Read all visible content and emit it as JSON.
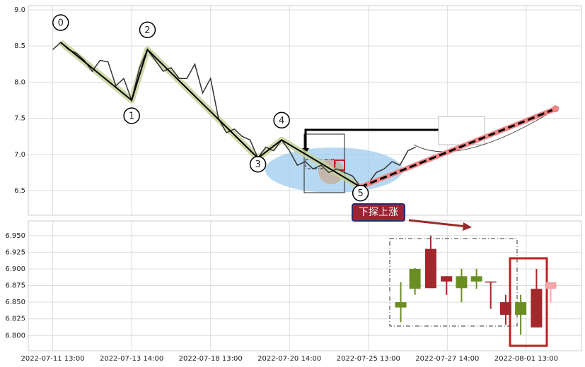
{
  "chart_data": [
    {
      "type": "line",
      "xlim": [
        -3.1,
        67.0
      ],
      "ylim": [
        6.158,
        9.058
      ],
      "yticks": [
        {
          "value": 9.0,
          "label": "9.0"
        },
        8.5,
        {
          "value": 8.0,
          "label": "8.0"
        },
        7.5,
        {
          "value": 7.0,
          "label": "7.0"
        },
        6.5
      ],
      "series": [
        {
          "color": "#333333",
          "x": [
            0,
            1,
            2,
            3,
            4,
            5,
            6,
            7,
            8,
            9,
            10,
            11,
            12,
            13,
            14,
            15,
            16,
            17,
            18,
            19,
            20,
            21,
            22,
            23,
            24,
            25,
            26,
            27,
            28,
            29,
            30,
            31,
            32,
            33,
            34,
            35,
            36,
            37,
            38,
            39,
            40,
            41,
            42,
            43,
            44,
            45,
            46
          ],
          "values": [
            8.45,
            8.55,
            8.45,
            8.4,
            8.3,
            8.15,
            8.3,
            8.28,
            7.95,
            8.05,
            7.75,
            8.2,
            8.45,
            8.3,
            8.15,
            8.2,
            8.05,
            8.05,
            8.25,
            7.85,
            8.05,
            7.5,
            7.3,
            7.35,
            7.25,
            7.2,
            6.95,
            7.1,
            7.05,
            7.2,
            7.05,
            6.85,
            6.9,
            6.8,
            6.85,
            6.75,
            6.8,
            6.75,
            6.7,
            6.55,
            6.6,
            6.75,
            6.8,
            6.9,
            6.85,
            7.05,
            7.1
          ]
        }
      ],
      "zigzag": {
        "color": "#000000",
        "glow": "#c5d29a",
        "x": [
          1,
          10,
          12,
          26,
          29,
          39
        ],
        "values": [
          8.55,
          7.75,
          8.45,
          6.95,
          7.2,
          6.55
        ],
        "labels": [
          "0",
          "1",
          "2",
          "3",
          "4",
          "5"
        ]
      },
      "forecast": {
        "color": "#f08585",
        "x": [
          39,
          63.7
        ],
        "values": [
          6.55,
          7.63
        ]
      },
      "annotation": "下探上涨",
      "grid": true
    },
    {
      "type": "candlestick",
      "xlim": [
        -3.1,
        67.0
      ],
      "ylim": [
        6.777,
        6.972
      ],
      "xticks": [
        {
          "value": 0,
          "label": "2022-07-11 13:00"
        },
        {
          "value": 10,
          "label": "2022-07-13 14:00"
        },
        {
          "value": 20,
          "label": "2022-07-18 13:00"
        },
        {
          "value": 30,
          "label": "2022-07-20 14:00"
        },
        {
          "value": 40,
          "label": "2022-07-25 13:00"
        },
        {
          "value": 50,
          "label": "2022-07-27 14:00"
        },
        {
          "value": 60,
          "label": "2022-08-01 13:00"
        }
      ],
      "yticks": [
        {
          "value": 6.95,
          "label": "6.950"
        },
        {
          "value": 6.925,
          "label": "6.925"
        },
        {
          "value": 6.9,
          "label": "6.900"
        },
        {
          "value": 6.875,
          "label": "6.875"
        },
        {
          "value": 6.85,
          "label": "6.850"
        },
        {
          "value": 6.825,
          "label": "6.825"
        },
        {
          "value": 6.8,
          "label": "6.800"
        }
      ],
      "x": [
        44.1,
        45.9,
        47.9,
        49.9,
        51.8,
        53.7,
        55.5,
        57.4,
        59.3,
        61.3,
        63.1
      ],
      "open": [
        6.85,
        6.9,
        6.871,
        6.881,
        6.889,
        6.889,
        6.88,
        6.831,
        6.85,
        6.812,
        6.87
      ],
      "high": [
        6.88,
        6.901,
        6.95,
        6.889,
        6.9,
        6.9,
        6.881,
        6.861,
        6.861,
        6.9,
        6.88
      ],
      "low": [
        6.82,
        6.861,
        6.871,
        6.861,
        6.85,
        6.87,
        6.84,
        6.816,
        6.801,
        6.812,
        6.85
      ],
      "close": [
        6.842,
        6.87,
        6.93,
        6.889,
        6.871,
        6.881,
        6.881,
        6.85,
        6.831,
        6.87,
        6.88
      ],
      "colors": [
        "#6b8e23",
        "#6b8e23",
        "#a3282c",
        "#a3282c",
        "#6b8e23",
        "#6b8e23",
        "#a3282c",
        "#a3282c",
        "#6b8e23",
        "#a3282c",
        "#f4a6a6"
      ],
      "grid": true
    }
  ]
}
